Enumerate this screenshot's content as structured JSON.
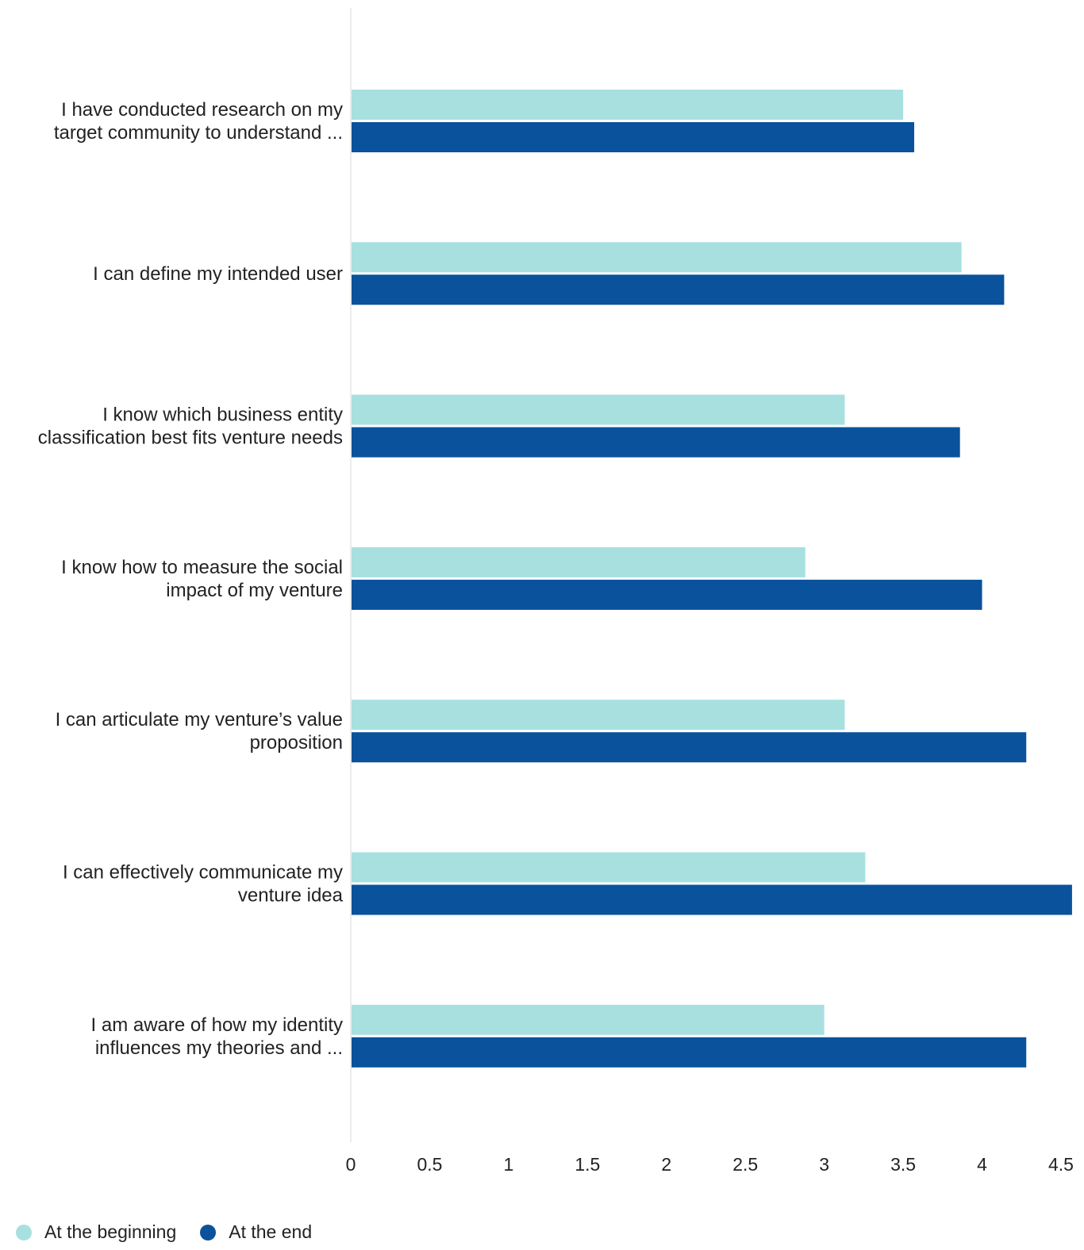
{
  "chart_data": {
    "type": "bar",
    "orientation": "horizontal",
    "title": "",
    "xlabel": "",
    "ylabel": "",
    "xlim": [
      0,
      4.5
    ],
    "x_ticks": [
      "0",
      "0.5",
      "1",
      "1.5",
      "2",
      "2.5",
      "3",
      "3.5",
      "4",
      "4.5"
    ],
    "grid": false,
    "legend_position": "bottom-left",
    "categories": [
      [
        "I have conducted research on my",
        "target community to understand ..."
      ],
      [
        "I can define my intended user"
      ],
      [
        "I know which business entity",
        "classification best fits venture needs"
      ],
      [
        "I know how to measure the social",
        "impact of my venture"
      ],
      [
        "I can articulate my venture’s value",
        "proposition"
      ],
      [
        "I can effectively communicate my",
        "venture idea"
      ],
      [
        "I am aware of how my identity",
        "influences my theories and ..."
      ]
    ],
    "series": [
      {
        "name": "At the beginning",
        "color": "#a8e0e0",
        "values": [
          3.5,
          3.87,
          3.13,
          2.88,
          3.13,
          3.26,
          3.0
        ]
      },
      {
        "name": "At the end",
        "color": "#0a529c",
        "values": [
          3.57,
          4.14,
          3.86,
          4.0,
          4.28,
          4.57,
          4.28
        ]
      }
    ]
  }
}
